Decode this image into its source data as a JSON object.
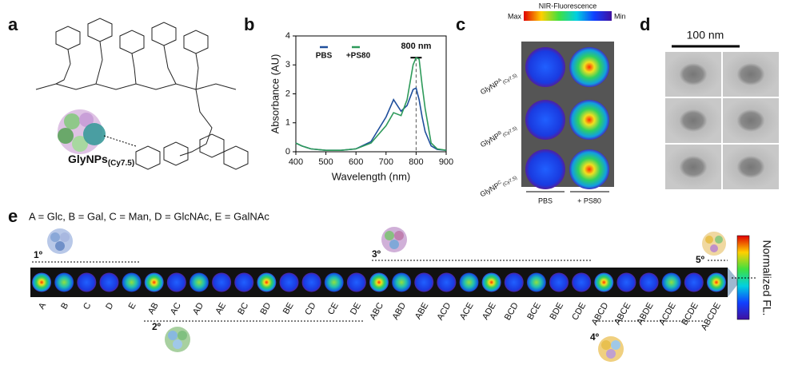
{
  "panel_labels": [
    "a",
    "b",
    "c",
    "d",
    "e"
  ],
  "panel_a": {
    "nanoparticle_label": "GlyNPs",
    "nanoparticle_subscript": "(Cy7.5)"
  },
  "chart_data": {
    "type": "line",
    "xlabel": "Wavelength (nm)",
    "ylabel": "Absorbance (AU)",
    "x": [
      400,
      420,
      450,
      500,
      550,
      600,
      650,
      700,
      725,
      750,
      770,
      790,
      800,
      810,
      820,
      830,
      850,
      870,
      900
    ],
    "series": [
      {
        "name": "PBS",
        "color": "#1f4f9c",
        "values": [
          0.3,
          0.2,
          0.1,
          0.05,
          0.05,
          0.1,
          0.35,
          1.2,
          1.8,
          1.4,
          1.6,
          2.15,
          2.2,
          1.8,
          1.2,
          0.7,
          0.2,
          0.08,
          0.05
        ]
      },
      {
        "name": "+PS80",
        "color": "#2e9a5a",
        "values": [
          0.3,
          0.2,
          0.1,
          0.05,
          0.05,
          0.1,
          0.3,
          0.9,
          1.35,
          1.25,
          1.8,
          3.0,
          3.25,
          3.2,
          2.3,
          1.5,
          0.3,
          0.1,
          0.05
        ]
      }
    ],
    "xlim": [
      400,
      900
    ],
    "xticks": [
      400,
      500,
      600,
      700,
      800,
      900
    ],
    "ylim": [
      0,
      4
    ],
    "yticks": [
      0,
      1,
      2,
      3,
      4
    ],
    "annotation": {
      "text": "800 nm",
      "x": 800,
      "y": 3.25
    }
  },
  "panel_c": {
    "colorbar_title": "NIR-Fluorescence",
    "colorbar_max": "Max",
    "colorbar_min": "Min",
    "rows": [
      {
        "name": "GlyNP",
        "superscript": "A",
        "subscript": "(Cy7.5)"
      },
      {
        "name": "GlyNP",
        "superscript": "B",
        "subscript": "(Cy7.5)"
      },
      {
        "name": "GlyNP",
        "superscript": "C",
        "subscript": "(Cy7.5)"
      }
    ],
    "columns": [
      "PBS",
      "+ PS80"
    ]
  },
  "panel_d": {
    "scale_bar": "100 nm"
  },
  "panel_e": {
    "legend": "A = Glc, B = Gal, C = Man, D = GlcNAc, E = GalNAc",
    "categories": [
      "A",
      "B",
      "C",
      "D",
      "E",
      "AB",
      "AC",
      "AD",
      "AE",
      "BC",
      "BD",
      "BE",
      "CD",
      "CE",
      "DE",
      "ABC",
      "ABD",
      "ABE",
      "ACD",
      "ACE",
      "ADE",
      "BCD",
      "BCE",
      "BDE",
      "CDE",
      "ABCD",
      "ABCE",
      "ABDE",
      "ACDE",
      "BCDE",
      "ABCDE"
    ],
    "orders": [
      "1º",
      "2º",
      "3º",
      "4º",
      "5º"
    ],
    "colorbar_label": "Normalized FL."
  }
}
